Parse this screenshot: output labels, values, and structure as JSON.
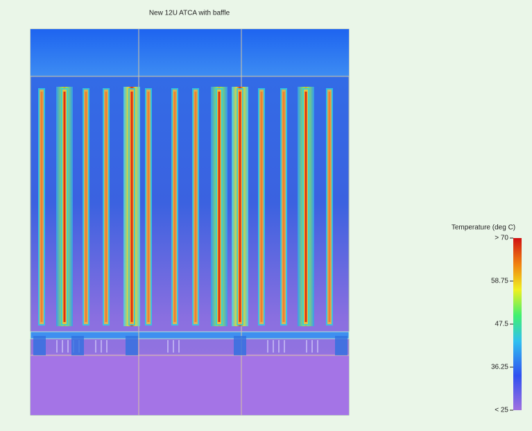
{
  "title": "New 12U ATCA with baffle",
  "colorbar": {
    "label": "Temperature (deg C)",
    "lim": [
      25,
      70
    ],
    "ticks": [
      {
        "value": 70,
        "label": "> 70"
      },
      {
        "value": 58.75,
        "label": "58.75"
      },
      {
        "value": 47.5,
        "label": "47.5"
      },
      {
        "value": 36.25,
        "label": "36.25"
      },
      {
        "value": 25,
        "label": "< 25"
      }
    ]
  }
}
